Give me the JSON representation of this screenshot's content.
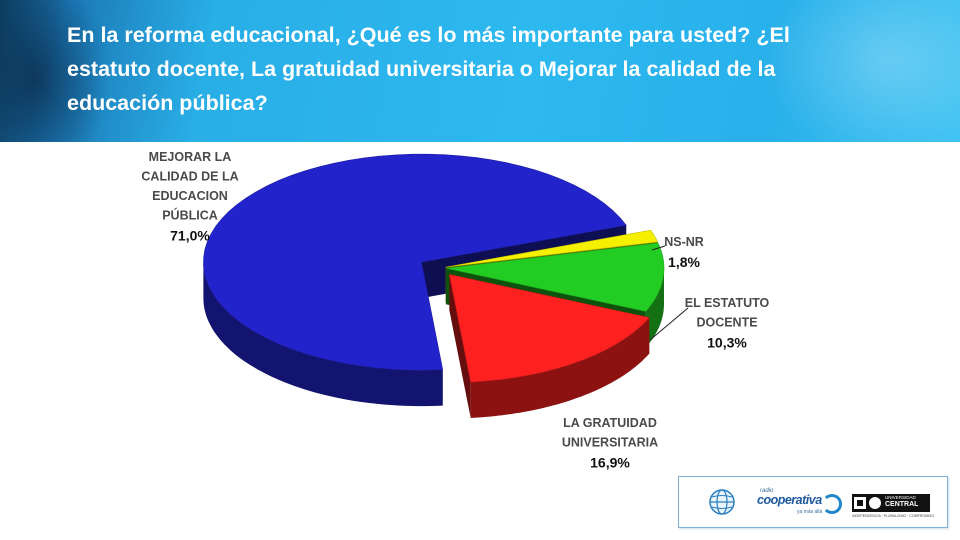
{
  "header": {
    "title": "En la reforma educacional, ¿Qué es lo más importante para usted? ¿El estatuto docente, La gratuidad universitaria o Mejorar la calidad de la educación pública?"
  },
  "chart_data": {
    "type": "pie",
    "title": "",
    "slices": [
      {
        "label_lines": [
          "NS-NR"
        ],
        "label": "NS-NR",
        "value": 1.8,
        "value_text": "1,8%",
        "color": "#f4f000"
      },
      {
        "label_lines": [
          "EL ESTATUTO",
          "DOCENTE"
        ],
        "label": "EL ESTATUTO DOCENTE",
        "value": 10.3,
        "value_text": "10,3%",
        "color": "#22cc22"
      },
      {
        "label_lines": [
          "LA GRATUIDAD",
          "UNIVERSITARIA"
        ],
        "label": "LA GRATUIDAD UNIVERSITARIA",
        "value": 16.9,
        "value_text": "16,9%",
        "color": "#ff2020"
      },
      {
        "label_lines": [
          "MEJORAR LA",
          "CALIDAD DE LA",
          "EDUCACION",
          "PÚBLICA"
        ],
        "label": "MEJORAR LA CALIDAD DE LA EDUCACION PÚBLICA",
        "value": 71.0,
        "value_text": "71,0%",
        "color": "#2323cc"
      }
    ]
  },
  "footer": {
    "logo_coop_small": "radio",
    "logo_coop_name": "cooperativa",
    "logo_coop_tag": "ya más allá",
    "logo_uc_top": "UNIVERSIDAD",
    "logo_uc_name": "CENTRAL",
    "logo_uc_sub": "INDEPENDENCIA · PLURALISMO · COMPROMISO"
  }
}
